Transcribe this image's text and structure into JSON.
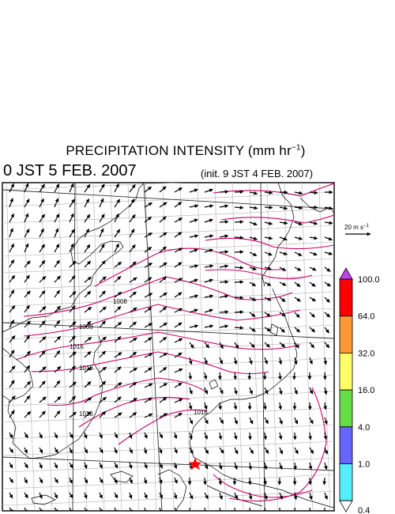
{
  "title": {
    "prefix": "PRECIPITATION INTENSITY (mm hr",
    "sup": "−1",
    "suffix": ")"
  },
  "valid_time": "0 JST 5 FEB. 2007",
  "init_time": "(init. 9 JST 4 FEB. 2007)",
  "wind_reference": {
    "label_prefix": "20 m s",
    "label_sup": "−1",
    "speed": 20
  },
  "colorbar": {
    "levels": [
      "100.0",
      "64.0",
      "32.0",
      "16.0",
      "4.0",
      "1.0",
      "0.4"
    ],
    "colors": [
      "#ff0000",
      "#ff9933",
      "#ffff66",
      "#66dd44",
      "#6666ff",
      "#55eeff"
    ],
    "overflow_color": "#bb44ee",
    "underflow_color": "#ffffff"
  },
  "isobar_labels": [
    "1008",
    "1008",
    "1016",
    "1016",
    "1016",
    "1016"
  ],
  "isobar_color": "#cc0066",
  "marker": {
    "type": "star",
    "color": "#ff0000"
  }
}
